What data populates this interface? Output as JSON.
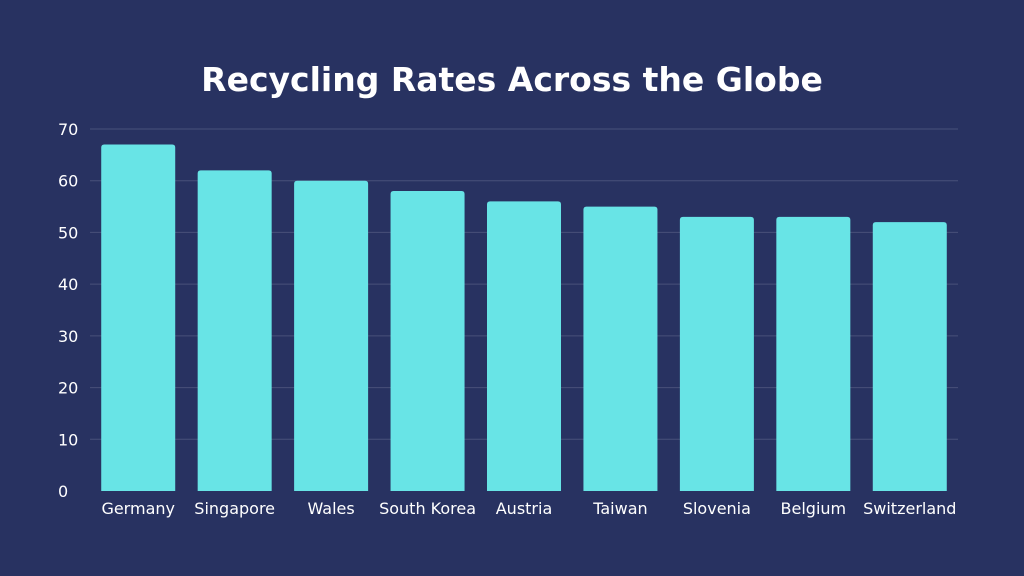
{
  "chart_data": {
    "type": "bar",
    "title": "Recycling Rates Across the Globe",
    "xlabel": "",
    "ylabel": "",
    "categories": [
      "Germany",
      "Singapore",
      "Wales",
      "South Korea",
      "Austria",
      "Taiwan",
      "Slovenia",
      "Belgium",
      "Switzerland"
    ],
    "values": [
      67,
      62,
      60,
      58,
      56,
      55,
      53,
      53,
      52
    ],
    "ylim": [
      0,
      70
    ],
    "yticks": [
      0,
      10,
      20,
      30,
      40,
      50,
      60,
      70
    ],
    "grid": true,
    "legend": "none"
  },
  "colors": {
    "background": "#283261",
    "bar": "#68e4e6",
    "gridline": "#48517a",
    "text": "#ffffff"
  }
}
